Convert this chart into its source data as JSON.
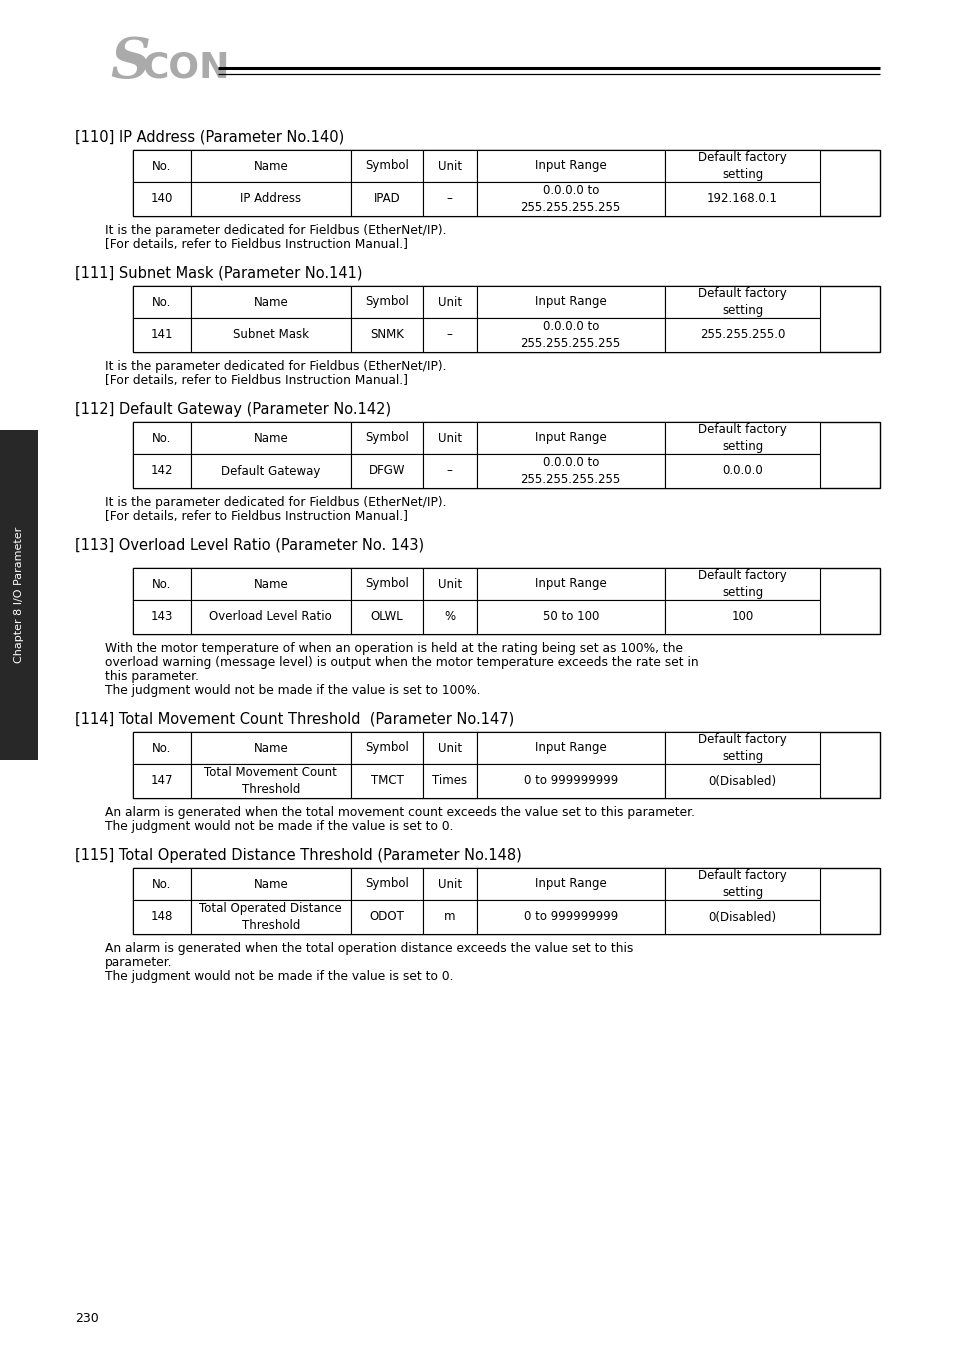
{
  "page_number": "230",
  "sections": [
    {
      "title": "[110] IP Address (Parameter No.140)",
      "table": {
        "headers": [
          "No.",
          "Name",
          "Symbol",
          "Unit",
          "Input Range",
          "Default factory\nsetting"
        ],
        "rows": [
          [
            "140",
            "IP Address",
            "IPAD",
            "–",
            "0.0.0.0 to\n255.255.255.255",
            "192.168.0.1"
          ]
        ]
      },
      "notes": [
        "It is the parameter dedicated for Fieldbus (EtherNet/IP).",
        "[For details, refer to Fieldbus Instruction Manual.]"
      ]
    },
    {
      "title": "[111] Subnet Mask (Parameter No.141)",
      "table": {
        "headers": [
          "No.",
          "Name",
          "Symbol",
          "Unit",
          "Input Range",
          "Default factory\nsetting"
        ],
        "rows": [
          [
            "141",
            "Subnet Mask",
            "SNMK",
            "–",
            "0.0.0.0 to\n255.255.255.255",
            "255.255.255.0"
          ]
        ]
      },
      "notes": [
        "It is the parameter dedicated for Fieldbus (EtherNet/IP).",
        "[For details, refer to Fieldbus Instruction Manual.]"
      ]
    },
    {
      "title": "[112] Default Gateway (Parameter No.142)",
      "table": {
        "headers": [
          "No.",
          "Name",
          "Symbol",
          "Unit",
          "Input Range",
          "Default factory\nsetting"
        ],
        "rows": [
          [
            "142",
            "Default Gateway",
            "DFGW",
            "–",
            "0.0.0.0 to\n255.255.255.255",
            "0.0.0.0"
          ]
        ]
      },
      "notes": [
        "It is the parameter dedicated for Fieldbus (EtherNet/IP).",
        "[For details, refer to Fieldbus Instruction Manual.]"
      ]
    },
    {
      "title": "[113] Overload Level Ratio (Parameter No. 143)",
      "extra_space_before_table": 10,
      "table": {
        "headers": [
          "No.",
          "Name",
          "Symbol",
          "Unit",
          "Input Range",
          "Default factory\nsetting"
        ],
        "rows": [
          [
            "143",
            "Overload Level Ratio",
            "OLWL",
            "%",
            "50 to 100",
            "100"
          ]
        ]
      },
      "notes": [
        "With the motor temperature of when an operation is held at the rating being set as 100%, the",
        "overload warning (message level) is output when the motor temperature exceeds the rate set in",
        "this parameter.",
        "The judgment would not be made if the value is set to 100%."
      ]
    },
    {
      "title": "[114] Total Movement Count Threshold  (Parameter No.147)",
      "table": {
        "headers": [
          "No.",
          "Name",
          "Symbol",
          "Unit",
          "Input Range",
          "Default factory\nsetting"
        ],
        "rows": [
          [
            "147",
            "Total Movement Count\nThreshold",
            "TMCT",
            "Times",
            "0 to 999999999",
            "0(Disabled)"
          ]
        ]
      },
      "notes": [
        "An alarm is generated when the total movement count exceeds the value set to this parameter.",
        "The judgment would not be made if the value is set to 0."
      ]
    },
    {
      "title": "[115] Total Operated Distance Threshold (Parameter No.148)",
      "table": {
        "headers": [
          "No.",
          "Name",
          "Symbol",
          "Unit",
          "Input Range",
          "Default factory\nsetting"
        ],
        "rows": [
          [
            "148",
            "Total Operated Distance\nThreshold",
            "ODOT",
            "m",
            "0 to 999999999",
            "0(Disabled)"
          ]
        ]
      },
      "notes": [
        "An alarm is generated when the total operation distance exceeds the value set to this",
        "parameter.",
        "The judgment would not be made if the value is set to 0."
      ]
    }
  ],
  "col_ratios": [
    0.077,
    0.215,
    0.096,
    0.072,
    0.252,
    0.208
  ],
  "bg_color": "#ffffff",
  "border_color": "#000000",
  "title_fontsize": 10.5,
  "table_header_fontsize": 8.5,
  "table_body_fontsize": 8.5,
  "note_fontsize": 8.8,
  "sidebar_text": "Chapter 8 I/O Parameter",
  "sidebar_bg": "#282828",
  "logo_color": "#aaaaaa",
  "logo_S_fontsize": 40,
  "logo_CON_fontsize": 26
}
